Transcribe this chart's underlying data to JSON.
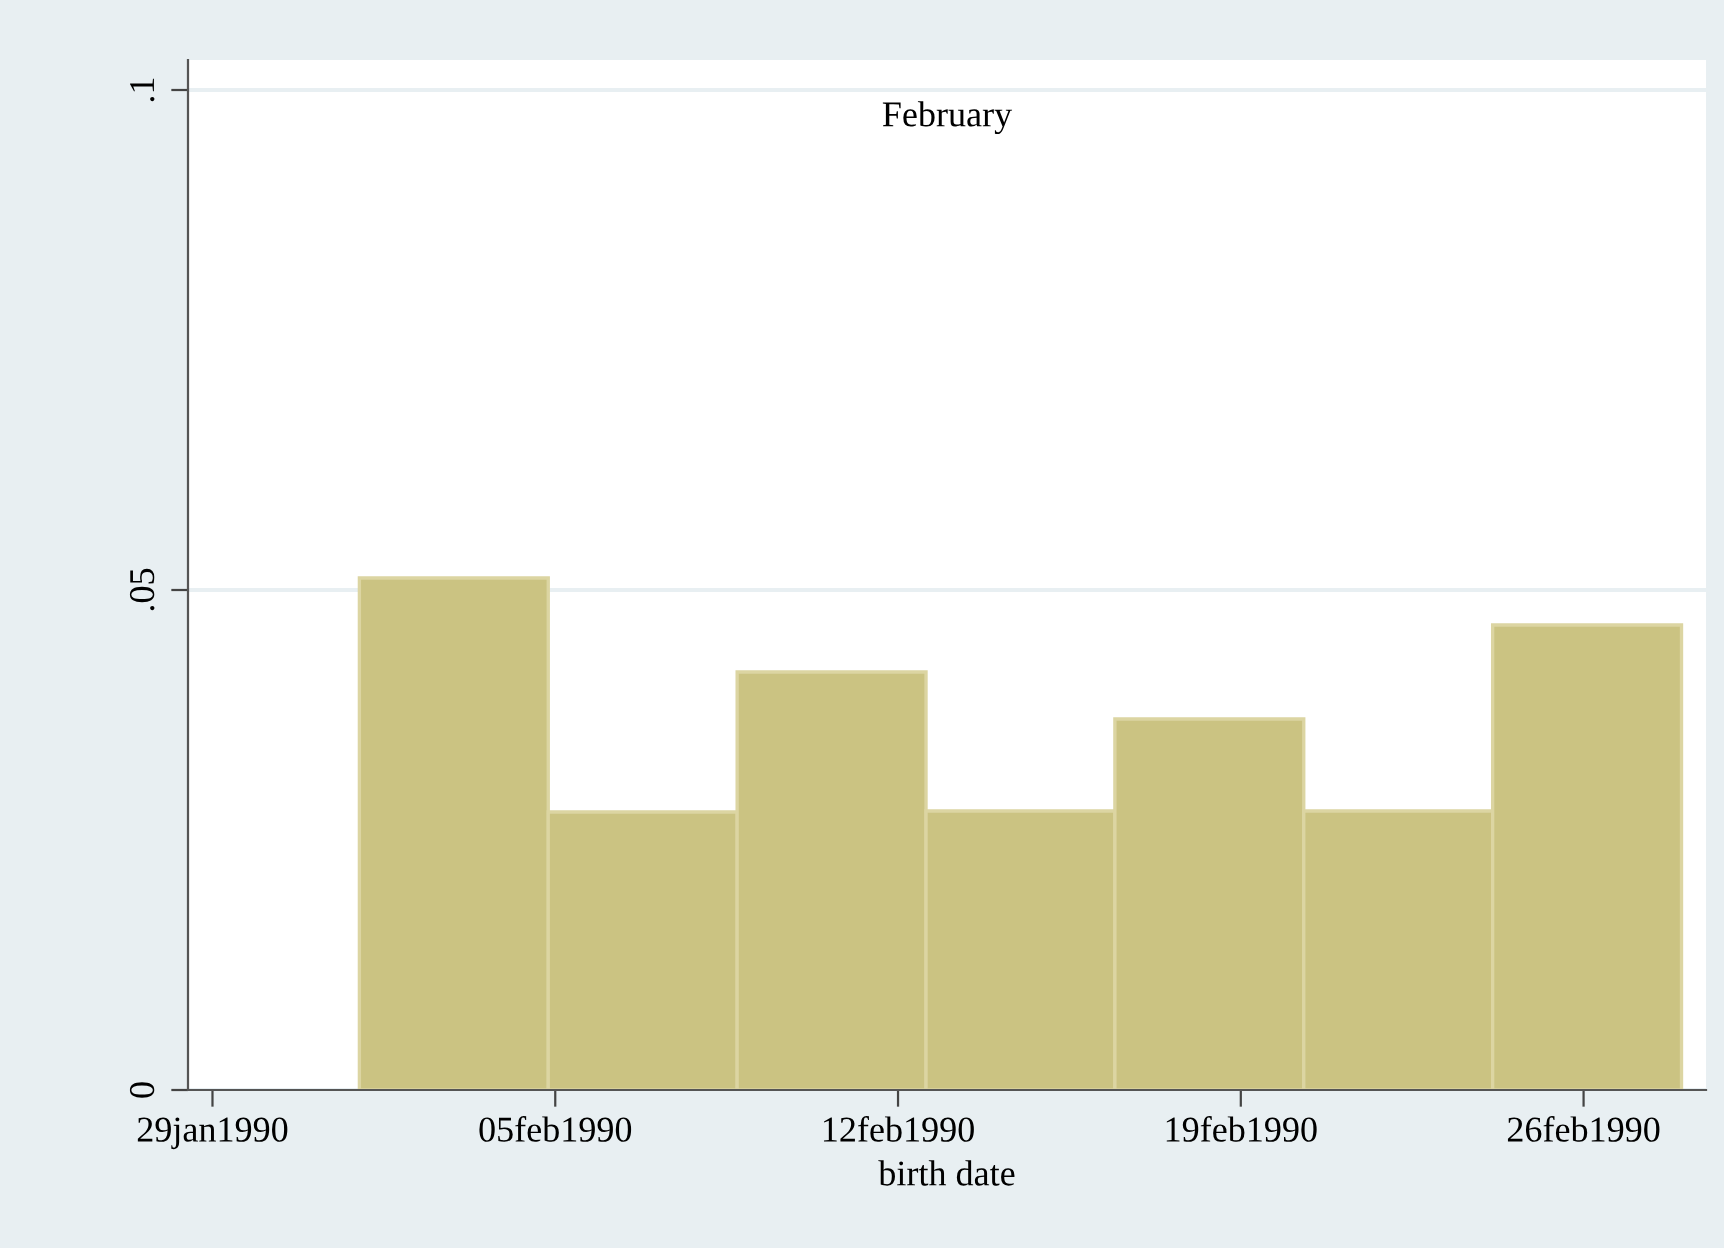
{
  "chart_data": {
    "type": "histogram",
    "title": "February",
    "xlabel": "birth date",
    "bins": [
      "1990-02-01",
      "1990-02-04T20:34",
      "1990-02-08T17:09",
      "1990-02-12T13:43",
      "1990-02-16T10:17",
      "1990-02-20T06:51",
      "1990-02-24T03:26",
      "1990-02-28"
    ],
    "values": [
      0.0512,
      0.0278,
      0.0418,
      0.0279,
      0.0371,
      0.0279,
      0.0465
    ],
    "color": "#cbc382",
    "xlim": [
      "1990-01-28T12:00",
      "1990-02-28T12:00"
    ],
    "xticks": [
      {
        "value": "1990-01-29",
        "label": "29jan1990"
      },
      {
        "value": "1990-02-05",
        "label": "05feb1990"
      },
      {
        "value": "1990-02-12",
        "label": "12feb1990"
      },
      {
        "value": "1990-02-19",
        "label": "19feb1990"
      },
      {
        "value": "1990-02-26",
        "label": "26feb1990"
      }
    ],
    "ylim": [
      0,
      0.103
    ],
    "yticks": [
      {
        "value": 0,
        "label": "0"
      },
      {
        "value": 0.05,
        "label": ".05"
      },
      {
        "value": 0.1,
        "label": ".1"
      }
    ],
    "grid": "y"
  }
}
